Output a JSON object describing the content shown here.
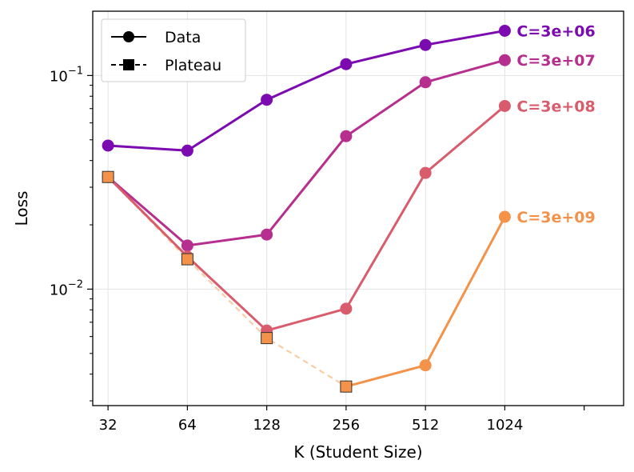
{
  "chart_data": {
    "type": "line",
    "xlabel": "K (Student Size)",
    "ylabel": "Loss",
    "x_scale": "log2",
    "y_scale": "log10",
    "xlim": [
      28,
      2890
    ],
    "ylim": [
      0.00285,
      0.2
    ],
    "grid": true,
    "x_ticks": [
      32,
      64,
      128,
      256,
      512,
      1024
    ],
    "x_tick_labels": [
      "32",
      "64",
      "128",
      "256",
      "512",
      "1024"
    ],
    "y_ticks": [
      0.1,
      0.01
    ],
    "y_tick_labels": [
      {
        "base": "10",
        "exp": "−1"
      },
      {
        "base": "10",
        "exp": "−2"
      }
    ],
    "legend": {
      "position": "top-left",
      "entries": [
        {
          "label": "Data",
          "marker": "circle",
          "line": "solid"
        },
        {
          "label": "Plateau",
          "marker": "square",
          "line": "dashed"
        }
      ]
    },
    "series": [
      {
        "name": "C=3e+06",
        "color": "#7b0ab0",
        "x": [
          32,
          64,
          128,
          256,
          512,
          1024
        ],
        "values": [
          0.047,
          0.0445,
          0.077,
          0.113,
          0.139,
          0.162
        ]
      },
      {
        "name": "C=3e+07",
        "color": "#b72f8e",
        "x": [
          32,
          64,
          128,
          256,
          512,
          1024
        ],
        "values": [
          0.0335,
          0.016,
          0.018,
          0.052,
          0.093,
          0.118
        ]
      },
      {
        "name": "C=3e+08",
        "color": "#d95c6c",
        "x": [
          32,
          64,
          128,
          256,
          512,
          1024
        ],
        "values": [
          0.0335,
          0.0142,
          0.0064,
          0.0081,
          0.035,
          0.072
        ]
      },
      {
        "name": "C=3e+09",
        "color": "#f4924a",
        "x": [
          256,
          512,
          1024
        ],
        "values": [
          0.0035,
          0.0044,
          0.0218
        ]
      }
    ],
    "plateau": {
      "name": "Plateau",
      "color": "#f7cda5",
      "marker_color": "#f4924a",
      "x": [
        32,
        64,
        128,
        256
      ],
      "values": [
        0.0335,
        0.0138,
        0.0059,
        0.0035
      ]
    }
  }
}
